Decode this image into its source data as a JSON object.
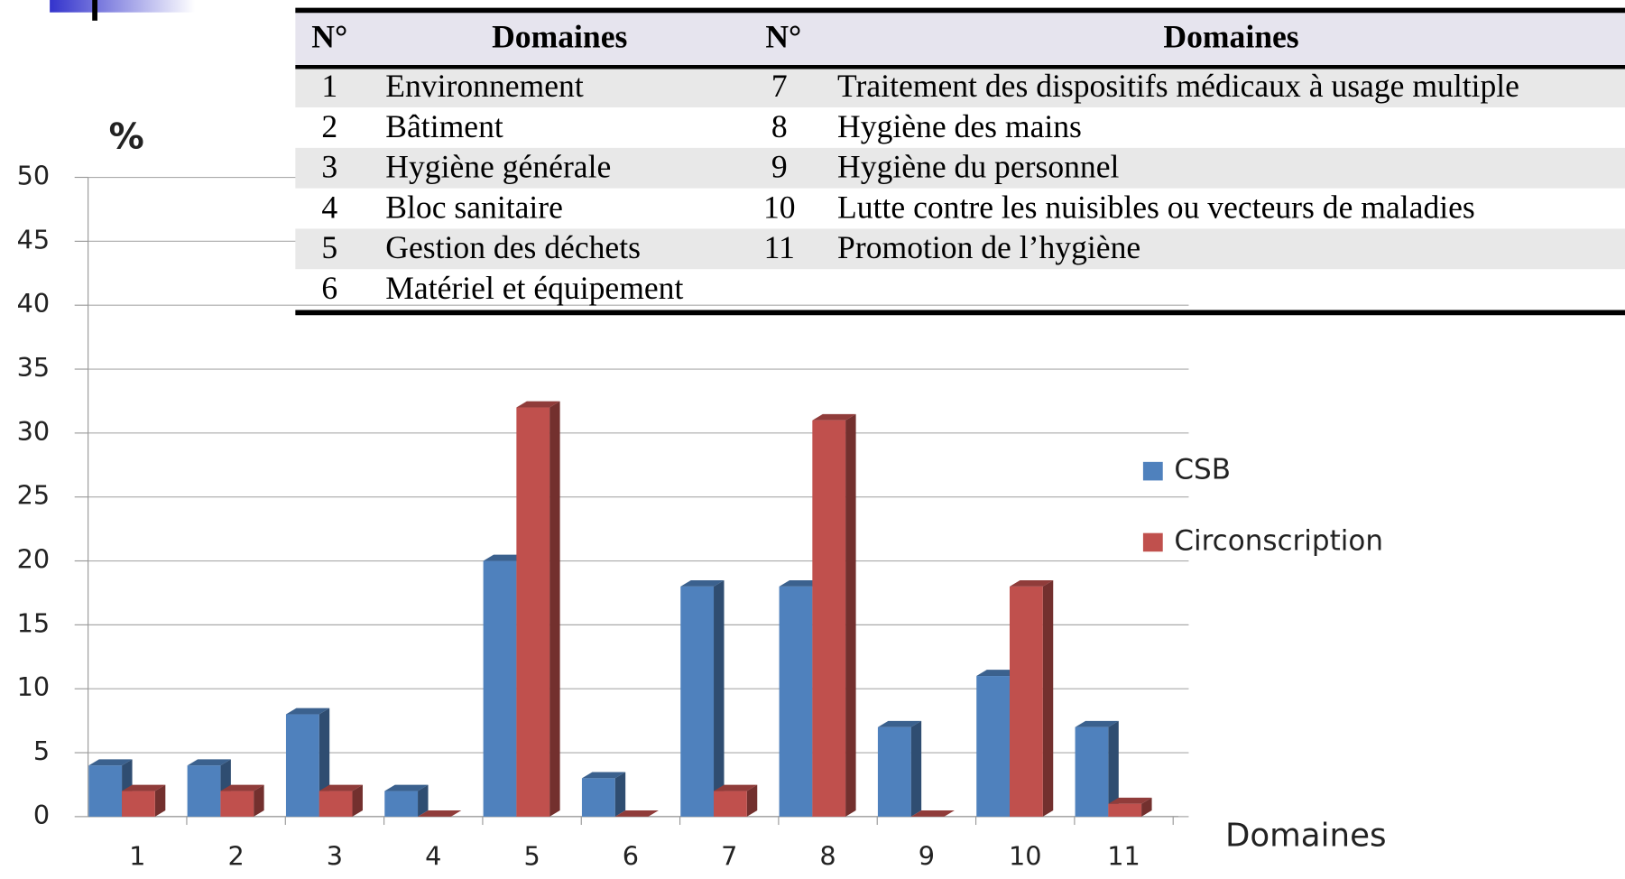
{
  "chart_data": {
    "type": "bar3d",
    "y_label": "%",
    "x_label": "Domaines",
    "categories": [
      "1",
      "2",
      "3",
      "4",
      "5",
      "6",
      "7",
      "8",
      "9",
      "10",
      "11"
    ],
    "series": [
      {
        "name": "CSB",
        "color": "#4f81bd",
        "values": [
          4,
          4,
          8,
          2,
          20,
          3,
          18,
          18,
          7,
          11,
          7
        ]
      },
      {
        "name": "Circonscription",
        "color": "#c0504d",
        "values": [
          2,
          2,
          2,
          0,
          32,
          0,
          2,
          31,
          0,
          18,
          1
        ]
      }
    ],
    "ylim": [
      0,
      50
    ],
    "yticks": [
      0,
      5,
      10,
      15,
      20,
      25,
      30,
      35,
      40,
      45,
      50
    ],
    "grid": true,
    "legend": "right"
  },
  "table": {
    "header": [
      "N°",
      "Domaines",
      "N°",
      "Domaines"
    ],
    "rows": [
      [
        "1",
        "Environnement",
        "7",
        "Traitement des dispositifs médicaux à usage multiple"
      ],
      [
        "2",
        "Bâtiment",
        "8",
        "Hygiène des mains"
      ],
      [
        "3",
        "Hygiène générale",
        "9",
        "Hygiène du personnel"
      ],
      [
        "4",
        "Bloc sanitaire",
        "10",
        "Lutte contre les nuisibles ou vecteurs de maladies"
      ],
      [
        "5",
        "Gestion des déchets",
        "11",
        "Promotion de l’hygiène"
      ],
      [
        "6",
        "Matériel et équipement"
      ]
    ]
  }
}
